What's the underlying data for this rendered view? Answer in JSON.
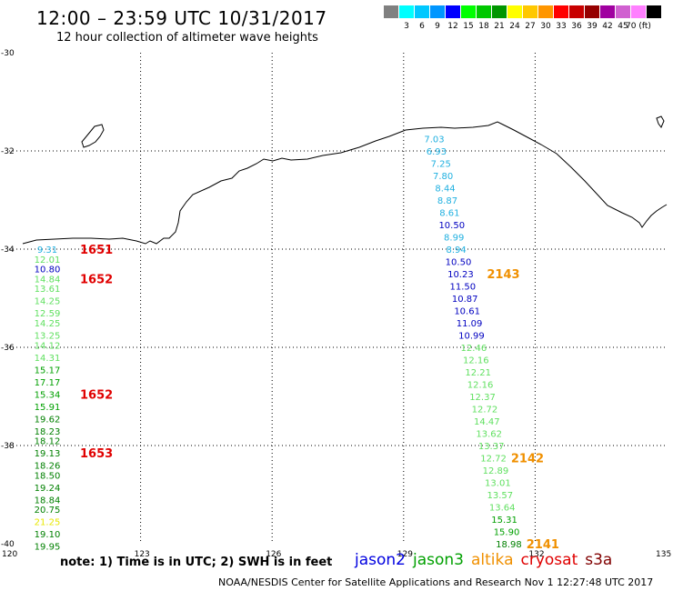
{
  "title": "12:00 – 23:59 UTC 10/31/2017",
  "subtitle": "12 hour collection of altimeter wave heights",
  "color_scale": {
    "colors": [
      "#808080",
      "#00ffff",
      "#00c8ff",
      "#0096ff",
      "#0000ff",
      "#00ff00",
      "#00c800",
      "#009600",
      "#ffff00",
      "#ffc800",
      "#ff9600",
      "#ff0000",
      "#c80000",
      "#960000",
      "#a000a0",
      "#d060d0",
      "#ff80ff",
      "#000000"
    ],
    "ticks": [
      "3",
      "6",
      "9",
      "12",
      "15",
      "18",
      "21",
      "24",
      "27",
      "30",
      "33",
      "36",
      "39",
      "42",
      "45",
      "70 (ft)"
    ]
  },
  "map": {
    "lon_ticks": [
      "120",
      "123",
      "126",
      "129",
      "132",
      "135"
    ],
    "lat_ticks": [
      "-30",
      "-32",
      "-34",
      "-36",
      "-38",
      "-40"
    ],
    "lon_range": [
      120,
      135
    ],
    "lat_range": [
      -30,
      -40
    ]
  },
  "west_track": [
    {
      "v": "9.31",
      "c": "#20b0e0",
      "lat": -34.0
    },
    {
      "v": "12.01",
      "c": "#60e060",
      "lat": -34.2
    },
    {
      "v": "10.80",
      "c": "#0000c0",
      "lat": -34.4
    },
    {
      "v": "14.84",
      "c": "#60e060",
      "lat": -34.6
    },
    {
      "v": "13.61",
      "c": "#60e060",
      "lat": -34.8
    },
    {
      "v": "14.25",
      "c": "#60e060",
      "lat": -35.05
    },
    {
      "v": "12.59",
      "c": "#60e060",
      "lat": -35.3
    },
    {
      "v": "14.25",
      "c": "#60e060",
      "lat": -35.5
    },
    {
      "v": "13.25",
      "c": "#60e060",
      "lat": -35.75
    },
    {
      "v": "14.12",
      "c": "#60e060",
      "lat": -35.95
    },
    {
      "v": "14.31",
      "c": "#60e060",
      "lat": -36.2
    },
    {
      "v": "15.17",
      "c": "#00a000",
      "lat": -36.45
    },
    {
      "v": "17.17",
      "c": "#00a000",
      "lat": -36.7
    },
    {
      "v": "15.34",
      "c": "#00a000",
      "lat": -36.95
    },
    {
      "v": "15.91",
      "c": "#00a000",
      "lat": -37.2
    },
    {
      "v": "19.62",
      "c": "#008000",
      "lat": -37.45
    },
    {
      "v": "18.23",
      "c": "#008000",
      "lat": -37.7
    },
    {
      "v": "18.12",
      "c": "#008000",
      "lat": -37.9
    },
    {
      "v": "19.13",
      "c": "#008000",
      "lat": -38.15
    },
    {
      "v": "18.26",
      "c": "#008000",
      "lat": -38.4
    },
    {
      "v": "18.50",
      "c": "#008000",
      "lat": -38.6
    },
    {
      "v": "19.24",
      "c": "#008000",
      "lat": -38.85
    },
    {
      "v": "18.84",
      "c": "#008000",
      "lat": -39.1
    },
    {
      "v": "20.75",
      "c": "#008000",
      "lat": -39.3
    },
    {
      "v": "21.25",
      "c": "#e8e800",
      "lat": -39.55
    },
    {
      "v": "19.10",
      "c": "#008000",
      "lat": -39.8
    },
    {
      "v": "19.95",
      "c": "#008000",
      "lat": -40.05
    }
  ],
  "west_times": [
    {
      "t": "1651",
      "lat": -34.0,
      "c": "#e00000"
    },
    {
      "t": "1652",
      "lat": -34.6,
      "c": "#e00000"
    },
    {
      "t": "1652",
      "lat": -36.95,
      "c": "#e00000"
    },
    {
      "t": "1653",
      "lat": -38.15,
      "c": "#e00000"
    }
  ],
  "east_track": [
    {
      "v": "7.03",
      "c": "#20b0e0",
      "lon": 129.45,
      "lat": -31.75
    },
    {
      "v": "6.93",
      "c": "#20b0e0",
      "lon": 129.5,
      "lat": -32.0
    },
    {
      "v": "7.25",
      "c": "#20b0e0",
      "lon": 129.6,
      "lat": -32.25
    },
    {
      "v": "7.80",
      "c": "#20b0e0",
      "lon": 129.65,
      "lat": -32.5
    },
    {
      "v": "8.44",
      "c": "#20b0e0",
      "lon": 129.7,
      "lat": -32.75
    },
    {
      "v": "8.87",
      "c": "#20b0e0",
      "lon": 129.75,
      "lat": -33.0
    },
    {
      "v": "8.61",
      "c": "#20b0e0",
      "lon": 129.8,
      "lat": -33.25
    },
    {
      "v": "10.50",
      "c": "#0000c0",
      "lon": 129.85,
      "lat": -33.5
    },
    {
      "v": "8.99",
      "c": "#20b0e0",
      "lon": 129.9,
      "lat": -33.75
    },
    {
      "v": "8.94",
      "c": "#20b0e0",
      "lon": 129.95,
      "lat": -34.0
    },
    {
      "v": "10.50",
      "c": "#0000c0",
      "lon": 130.0,
      "lat": -34.25
    },
    {
      "v": "10.23",
      "c": "#0000c0",
      "lon": 130.05,
      "lat": -34.5
    },
    {
      "v": "11.50",
      "c": "#0000c0",
      "lon": 130.1,
      "lat": -34.75
    },
    {
      "v": "10.87",
      "c": "#0000c0",
      "lon": 130.15,
      "lat": -35.0
    },
    {
      "v": "10.61",
      "c": "#0000c0",
      "lon": 130.2,
      "lat": -35.25
    },
    {
      "v": "11.09",
      "c": "#0000c0",
      "lon": 130.25,
      "lat": -35.5
    },
    {
      "v": "10.99",
      "c": "#0000c0",
      "lon": 130.3,
      "lat": -35.75
    },
    {
      "v": "12.46",
      "c": "#60e060",
      "lon": 130.35,
      "lat": -36.0
    },
    {
      "v": "12.16",
      "c": "#60e060",
      "lon": 130.4,
      "lat": -36.25
    },
    {
      "v": "12.21",
      "c": "#60e060",
      "lon": 130.45,
      "lat": -36.5
    },
    {
      "v": "12.16",
      "c": "#60e060",
      "lon": 130.5,
      "lat": -36.75
    },
    {
      "v": "12.37",
      "c": "#60e060",
      "lon": 130.55,
      "lat": -37.0
    },
    {
      "v": "12.72",
      "c": "#60e060",
      "lon": 130.6,
      "lat": -37.25
    },
    {
      "v": "14.47",
      "c": "#60e060",
      "lon": 130.65,
      "lat": -37.5
    },
    {
      "v": "13.62",
      "c": "#60e060",
      "lon": 130.7,
      "lat": -37.75
    },
    {
      "v": "13.37",
      "c": "#60e060",
      "lon": 130.75,
      "lat": -38.0
    },
    {
      "v": "12.72",
      "c": "#60e060",
      "lon": 130.8,
      "lat": -38.25
    },
    {
      "v": "12.89",
      "c": "#60e060",
      "lon": 130.85,
      "lat": -38.5
    },
    {
      "v": "13.01",
      "c": "#60e060",
      "lon": 130.9,
      "lat": -38.75
    },
    {
      "v": "13.57",
      "c": "#60e060",
      "lon": 130.95,
      "lat": -39.0
    },
    {
      "v": "13.64",
      "c": "#60e060",
      "lon": 131.0,
      "lat": -39.25
    },
    {
      "v": "15.31",
      "c": "#00a000",
      "lon": 131.05,
      "lat": -39.5
    },
    {
      "v": "15.90",
      "c": "#00a000",
      "lon": 131.1,
      "lat": -39.75
    },
    {
      "v": "18.98",
      "c": "#008000",
      "lon": 131.15,
      "lat": -40.0
    }
  ],
  "east_times": [
    {
      "t": "2143",
      "lon": 130.9,
      "lat": -34.5,
      "c": "#f09000"
    },
    {
      "t": "2142",
      "lon": 131.45,
      "lat": -38.25,
      "c": "#f09000"
    },
    {
      "t": "2141",
      "lon": 131.8,
      "lat": -40.0,
      "c": "#f09000"
    }
  ],
  "footer": {
    "note": "note: 1) Time is in UTC; 2) SWH is in feet",
    "credit": "NOAA/NESDIS Center for Satellite Applications and Research   Nov  1 12:27:48 UTC 2017"
  },
  "satellites": [
    {
      "name": "jason2",
      "c": "#0000e0"
    },
    {
      "name": "jason3",
      "c": "#00a000"
    },
    {
      "name": "altika",
      "c": "#f09000"
    },
    {
      "name": "cryosat",
      "c": "#e00000"
    },
    {
      "name": "s3a",
      "c": "#800000"
    }
  ]
}
